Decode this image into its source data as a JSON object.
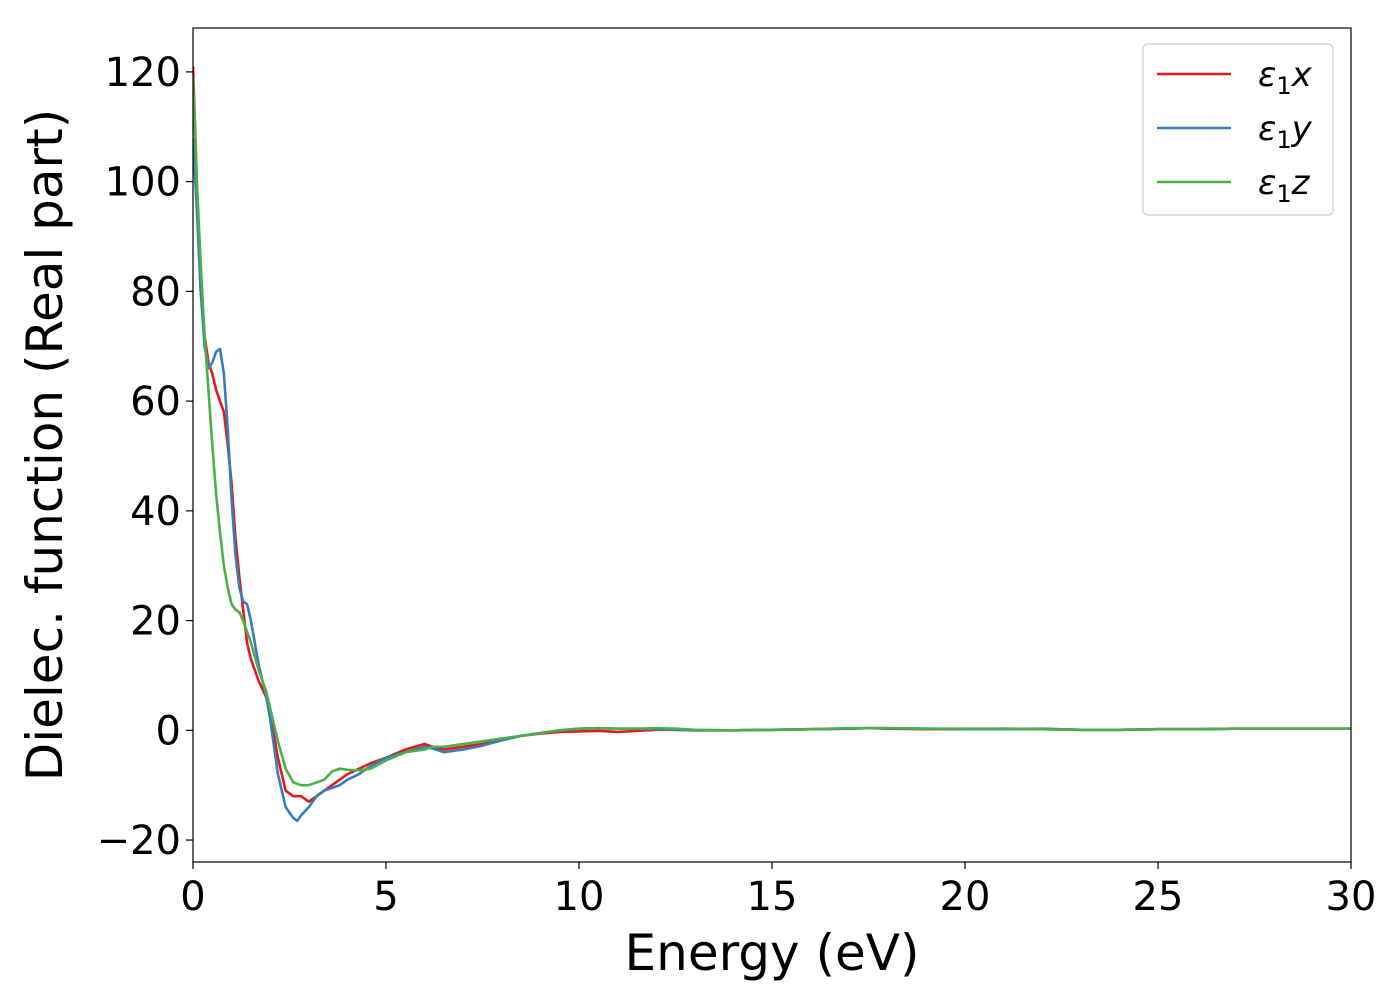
{
  "chart_data": {
    "type": "line",
    "title": "",
    "xlabel": "Energy (eV)",
    "ylabel": "Dielec. function (Real part)",
    "xlim": [
      0,
      30
    ],
    "ylim": [
      -24,
      128
    ],
    "xticks": [
      0,
      5,
      10,
      15,
      20,
      25,
      30
    ],
    "yticks": [
      -20,
      0,
      20,
      40,
      60,
      80,
      100,
      120
    ],
    "xtick_labels": [
      "0",
      "5",
      "10",
      "15",
      "20",
      "25",
      "30"
    ],
    "ytick_labels": [
      "−20",
      "0",
      "20",
      "40",
      "60",
      "80",
      "100",
      "120"
    ],
    "grid": false,
    "legend_position": "top-right",
    "series": [
      {
        "name": "ε₁x",
        "legend": {
          "base": "ε",
          "sub": "1",
          "suffix": "x"
        },
        "color": "#e41a1c",
        "x": [
          0,
          0.1,
          0.2,
          0.3,
          0.4,
          0.5,
          0.6,
          0.7,
          0.8,
          0.9,
          1.0,
          1.1,
          1.2,
          1.3,
          1.4,
          1.5,
          1.7,
          1.9,
          2.0,
          2.2,
          2.4,
          2.6,
          2.8,
          3.0,
          3.2,
          3.4,
          3.6,
          3.8,
          4.0,
          4.3,
          4.6,
          5.0,
          5.5,
          6.0,
          6.2,
          6.5,
          7.0,
          7.5,
          8.0,
          8.5,
          9.0,
          9.5,
          10.0,
          10.5,
          11.0,
          11.5,
          12.0,
          12.5,
          13.0,
          14.0,
          15.0,
          16.0,
          17.0,
          17.5,
          18.0,
          19.0,
          20.0,
          21.0,
          22.0,
          23.0,
          24.0,
          25.0,
          26.0,
          27.0,
          28.0,
          29.0,
          30.0
        ],
        "y": [
          121,
          100,
          80,
          72,
          67,
          65,
          62,
          60,
          58,
          52,
          45,
          35,
          28,
          22,
          16,
          13,
          9,
          6,
          3,
          -5,
          -11,
          -12,
          -12,
          -13,
          -12,
          -11,
          -10,
          -9,
          -8,
          -7,
          -6,
          -5,
          -3.5,
          -2.5,
          -3,
          -3.5,
          -3,
          -2.5,
          -1.8,
          -1,
          -0.6,
          -0.3,
          -0.2,
          -0.1,
          -0.3,
          -0.1,
          0.1,
          0.1,
          0,
          0,
          0.1,
          0.2,
          0.3,
          0.4,
          0.3,
          0.2,
          0.2,
          0.3,
          0.2,
          0.1,
          0.1,
          0.2,
          0.2,
          0.3,
          0.3,
          0.3,
          0.3
        ]
      },
      {
        "name": "ε₁y",
        "legend": {
          "base": "ε",
          "sub": "1",
          "suffix": "y"
        },
        "color": "#377eb8",
        "x": [
          0,
          0.1,
          0.2,
          0.3,
          0.4,
          0.5,
          0.6,
          0.7,
          0.8,
          0.9,
          1.0,
          1.1,
          1.2,
          1.3,
          1.4,
          1.5,
          1.7,
          1.9,
          2.0,
          2.2,
          2.4,
          2.6,
          2.7,
          2.8,
          3.0,
          3.2,
          3.4,
          3.6,
          3.8,
          4.0,
          4.3,
          4.6,
          5.0,
          5.5,
          6.0,
          6.2,
          6.5,
          7.0,
          7.5,
          8.0,
          8.5,
          9.0,
          9.5,
          10.0,
          10.5,
          11.0,
          11.5,
          12.0,
          12.5,
          13.0,
          14.0,
          15.0,
          16.0,
          17.0,
          17.5,
          18.0,
          19.0,
          20.0,
          21.0,
          22.0,
          23.0,
          24.0,
          25.0,
          26.0,
          27.0,
          28.0,
          29.0,
          30.0
        ],
        "y": [
          108,
          95,
          80,
          70,
          66,
          67,
          69,
          69.5,
          65,
          55,
          42,
          32,
          26,
          23.5,
          23,
          20,
          12,
          6,
          2,
          -8,
          -14,
          -16,
          -16.5,
          -15.5,
          -14,
          -12,
          -11,
          -10.5,
          -10,
          -9,
          -8,
          -6.5,
          -5,
          -4,
          -3,
          -3.3,
          -4,
          -3.5,
          -2.8,
          -1.8,
          -1,
          -0.5,
          0,
          0.3,
          0.4,
          0.3,
          0.3,
          0.2,
          0.1,
          0,
          0,
          0.1,
          0.2,
          0.3,
          0.4,
          0.4,
          0.3,
          0.2,
          0.2,
          0.3,
          0.1,
          0.1,
          0.2,
          0.2,
          0.3,
          0.3,
          0.3,
          0.3
        ]
      },
      {
        "name": "ε₁z",
        "legend": {
          "base": "ε",
          "sub": "1",
          "suffix": "z"
        },
        "color": "#4daf4a",
        "x": [
          0,
          0.1,
          0.2,
          0.3,
          0.4,
          0.5,
          0.6,
          0.7,
          0.8,
          0.9,
          1.0,
          1.1,
          1.2,
          1.3,
          1.4,
          1.5,
          1.7,
          1.9,
          2.0,
          2.2,
          2.4,
          2.6,
          2.8,
          3.0,
          3.2,
          3.4,
          3.6,
          3.8,
          4.0,
          4.3,
          4.6,
          5.0,
          5.5,
          6.0,
          6.2,
          6.5,
          7.0,
          7.5,
          8.0,
          8.5,
          9.0,
          9.5,
          10.0,
          10.5,
          11.0,
          11.5,
          12.0,
          12.5,
          13.0,
          14.0,
          15.0,
          16.0,
          17.0,
          17.5,
          18.0,
          19.0,
          20.0,
          21.0,
          22.0,
          23.0,
          24.0,
          25.0,
          26.0,
          27.0,
          28.0,
          29.0,
          30.0
        ],
        "y": [
          119,
          100,
          85,
          72,
          62,
          52,
          43,
          36,
          30,
          26,
          23,
          22,
          21.5,
          20,
          18,
          16,
          11,
          7,
          4,
          -2,
          -7,
          -9.5,
          -10,
          -10,
          -9.5,
          -9,
          -7.5,
          -7,
          -7.2,
          -7.3,
          -7,
          -5.5,
          -4,
          -3.5,
          -3,
          -3,
          -2.5,
          -2,
          -1.5,
          -1,
          -0.5,
          0,
          0.3,
          0.4,
          0.3,
          0.3,
          0.4,
          0.3,
          0.1,
          0,
          0.1,
          0.2,
          0.4,
          0.4,
          0.4,
          0.3,
          0.3,
          0.3,
          0.2,
          0.1,
          0.1,
          0.2,
          0.2,
          0.3,
          0.3,
          0.3,
          0.3
        ]
      }
    ]
  }
}
